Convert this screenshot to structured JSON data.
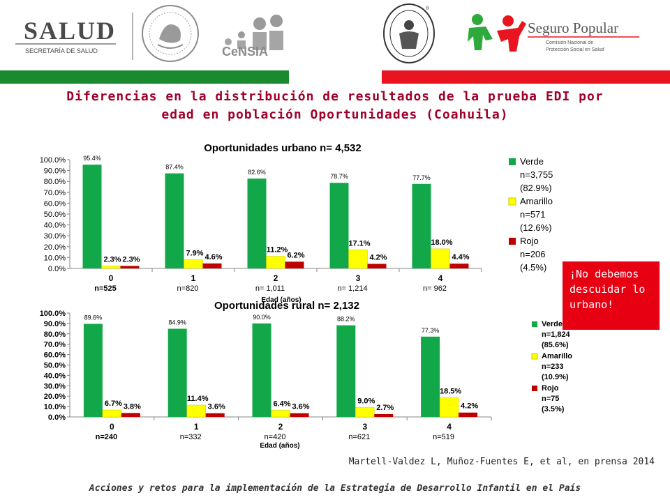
{
  "header": {
    "salud_logo": {
      "name": "SALUD",
      "subtitle": "SECRETARÍA DE SALUD"
    },
    "censia_logo": {
      "name": "CeNSIA"
    },
    "seguro_logo": {
      "name": "Seguro Popular",
      "line1": "Comisión Nacional de",
      "line2": "Protección Social en Salud"
    },
    "hospital_logo": {
      "name": "Hospital Infantil de México Federico Gómez"
    }
  },
  "colors": {
    "band_green": "#1b8a2f",
    "band_red": "#e8141e",
    "verde": "#12a84a",
    "amarillo": "#ffff00",
    "rojo": "#c00000",
    "title": "#a0002a"
  },
  "slide_title_line1": "Diferencias en la distribución de resultados de la prueba EDI por",
  "slide_title_line2": "edad en población Oportunidades (Coahuila)",
  "callout_text": "¡No debemos descuidar lo urbano!",
  "citation": "Martell-Valdez L, Muñoz-Fuentes E, et al, en prensa 2014",
  "footer_text": "Acciones y retos para la implementación de la Estrategia de Desarrollo Infantil en el País",
  "chart_data": [
    {
      "type": "bar",
      "title": "Oportunidades urbano n= 4,532",
      "xlabel": "Edad (años)",
      "categories": [
        "0",
        "1",
        "2",
        "3",
        "4"
      ],
      "n_labels": [
        "n=525",
        "n=820",
        "n= 1,011",
        "n= 1,214",
        "n= 962"
      ],
      "ylim": [
        0,
        100
      ],
      "yticks": [
        "0.0%",
        "10.0%",
        "20.0%",
        "30.0%",
        "40.0%",
        "50.0%",
        "60.0%",
        "70.0%",
        "80.0%",
        "90.0%",
        "100.0%"
      ],
      "grid": false,
      "legend_position": "right",
      "series": [
        {
          "name": "Verde",
          "legend_lines": [
            "Verde",
            "n=3,755",
            "(82.9%)"
          ],
          "values": [
            95.4,
            87.4,
            82.6,
            78.7,
            77.7
          ]
        },
        {
          "name": "Amarillo",
          "legend_lines": [
            "Amarillo",
            "n=571",
            "(12.6%)"
          ],
          "values": [
            2.3,
            7.9,
            11.2,
            17.1,
            18.0
          ]
        },
        {
          "name": "Rojo",
          "legend_lines": [
            "Rojo",
            "n=206",
            "(4.5%)"
          ],
          "values": [
            2.3,
            4.6,
            6.2,
            4.2,
            4.4
          ]
        }
      ]
    },
    {
      "type": "bar",
      "title": "Oportunidades rural n= 2,132",
      "xlabel": "Edad (años)",
      "categories": [
        "0",
        "1",
        "2",
        "3",
        "4"
      ],
      "n_labels": [
        "n=240",
        "n=332",
        "n=420",
        "n=621",
        "n=519"
      ],
      "ylim": [
        0,
        100
      ],
      "yticks": [
        "0.0%",
        "10.0%",
        "20.0%",
        "30.0%",
        "40.0%",
        "50.0%",
        "60.0%",
        "70.0%",
        "80.0%",
        "90.0%",
        "100.0%"
      ],
      "grid": false,
      "legend_position": "right",
      "series": [
        {
          "name": "Verde",
          "legend_lines": [
            "Verde",
            "n=1,824",
            "(85.6%)"
          ],
          "values": [
            89.6,
            84.9,
            90.0,
            88.2,
            77.3
          ]
        },
        {
          "name": "Amarillo",
          "legend_lines": [
            "Amarillo",
            "n=233",
            "(10.9%)"
          ],
          "values": [
            6.7,
            11.4,
            6.4,
            9.0,
            18.5
          ]
        },
        {
          "name": "Rojo",
          "legend_lines": [
            "Rojo",
            "n=75",
            "(3.5%)"
          ],
          "values": [
            3.8,
            3.6,
            3.6,
            2.7,
            4.2
          ]
        }
      ]
    }
  ]
}
